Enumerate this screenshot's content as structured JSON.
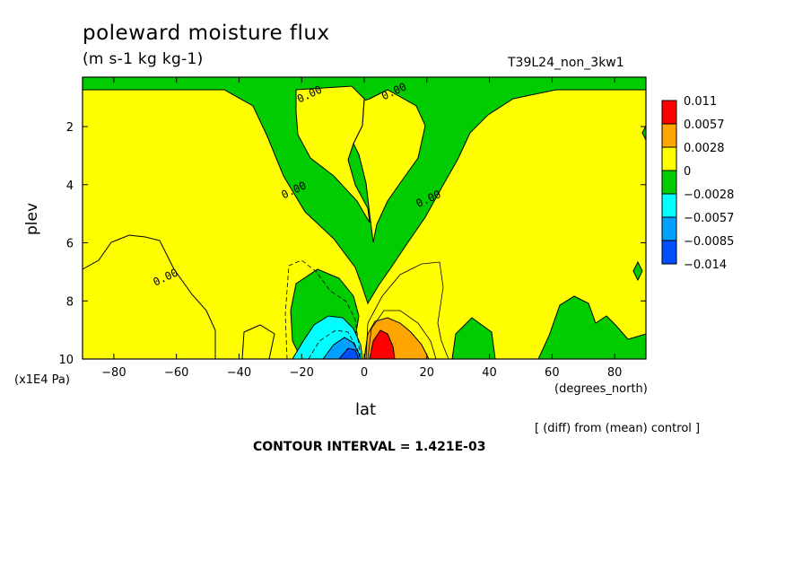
{
  "title": "poleward moisture flux",
  "units": "(m s-1 kg kg-1)",
  "run_id": "T39L24_non_3kw1",
  "diff_note": "[ (diff) from (mean) control ]",
  "contour_interval": "CONTOUR INTERVAL = 1.421E-03",
  "chart_data": {
    "type": "heatmap",
    "title": "poleward moisture flux",
    "xlabel": "lat",
    "x_units": "(degrees_north)",
    "ylabel": "plev",
    "y_units": "(x1E4 Pa)",
    "xlim": [
      -90,
      90
    ],
    "ylim": [
      10,
      0.3
    ],
    "x_ticks": [
      -80,
      -60,
      -40,
      -20,
      0,
      20,
      40,
      60,
      80
    ],
    "y_ticks": [
      2,
      4,
      6,
      8,
      10
    ],
    "colorbar": {
      "labels": [
        "0.011",
        "0.0057",
        "0.0028",
        "0",
        "-0.0028",
        "-0.0057",
        "-0.0085",
        "-0.014"
      ],
      "colors": [
        "#ff0000",
        "#ffa500",
        "#ffff00",
        "#00cc00",
        "#00ffff",
        "#00a0ff",
        "#0050ff"
      ]
    },
    "contour_labels": [
      {
        "text": "0.00",
        "lat": -17,
        "plev": 1.0
      },
      {
        "text": "0.00",
        "lat": 10,
        "plev": 0.9
      },
      {
        "text": "0.00",
        "lat": -22,
        "plev": 4.3
      },
      {
        "text": "0.00",
        "lat": 21,
        "plev": 4.6
      },
      {
        "text": "0.00",
        "lat": -63,
        "plev": 7.3
      }
    ]
  }
}
